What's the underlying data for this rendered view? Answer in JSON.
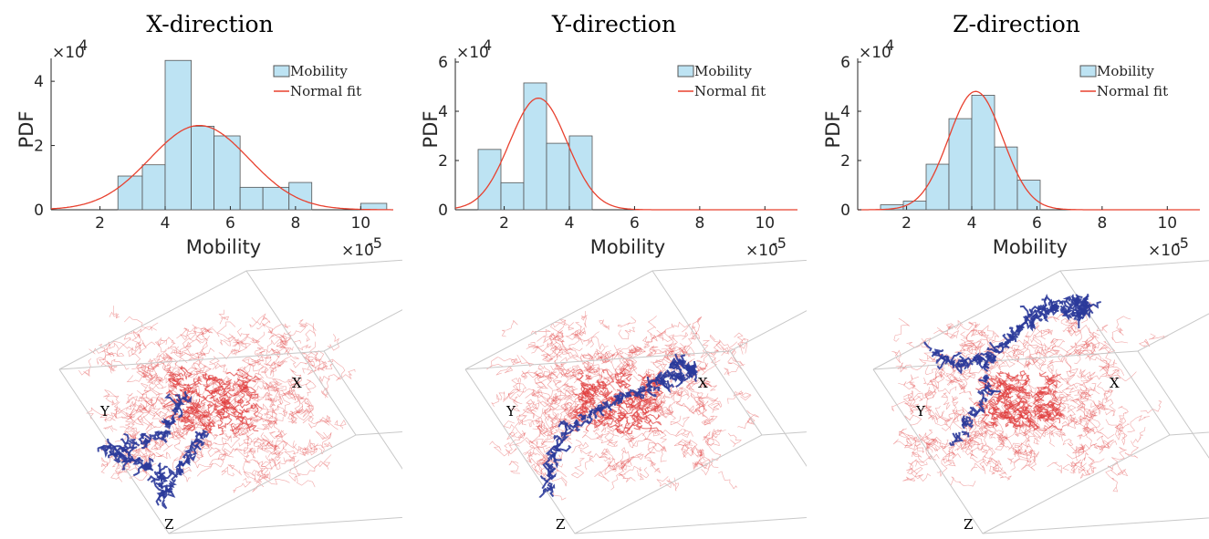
{
  "chart_data": [
    {
      "type": "bar",
      "title": "X-direction",
      "xlabel": "Mobility",
      "ylabel": "PDF",
      "x_multiplier": "×10",
      "x_exponent": "-5",
      "y_multiplier": "×10",
      "y_exponent": "4",
      "xlim": [
        0.5,
        11
      ],
      "ylim": [
        0,
        4.6
      ],
      "xticks": [
        "2",
        "4",
        "6",
        "8",
        "10"
      ],
      "yticks": [
        "0",
        "2",
        "4"
      ],
      "bin_edges": [
        2.55,
        3.3,
        4.0,
        4.8,
        5.5,
        6.3,
        7.0,
        7.8,
        8.5,
        9.3,
        10.0,
        10.8
      ],
      "bin_values": [
        1.05,
        1.4,
        4.65,
        2.6,
        2.3,
        0.7,
        0.7,
        0.85,
        0,
        0,
        0.2
      ],
      "fit": {
        "mean": 5.05,
        "sd": 1.52
      },
      "legend": [
        "Mobility",
        "Normal fit"
      ]
    },
    {
      "type": "bar",
      "title": "Y-direction",
      "xlabel": "Mobility",
      "ylabel": "PDF",
      "x_multiplier": "×10",
      "x_exponent": "-5",
      "y_multiplier": "×10",
      "y_exponent": "4",
      "xlim": [
        0.5,
        11
      ],
      "ylim": [
        0,
        6
      ],
      "xticks": [
        "2",
        "4",
        "6",
        "8",
        "10"
      ],
      "yticks": [
        "0",
        "2",
        "4",
        "6"
      ],
      "bin_edges": [
        1.2,
        1.9,
        2.6,
        3.3,
        4.0,
        4.7
      ],
      "bin_values": [
        2.45,
        1.1,
        5.15,
        2.7,
        3.0
      ],
      "fit": {
        "mean": 3.05,
        "sd": 0.88
      },
      "legend": [
        "Mobility",
        "Normal fit"
      ]
    },
    {
      "type": "bar",
      "title": "Z-direction",
      "xlabel": "Mobility",
      "ylabel": "PDF",
      "x_multiplier": "×10",
      "x_exponent": "-5",
      "y_multiplier": "×10",
      "y_exponent": "4",
      "xlim": [
        0.5,
        11
      ],
      "ylim": [
        0,
        6
      ],
      "xticks": [
        "2",
        "4",
        "6",
        "8",
        "10"
      ],
      "yticks": [
        "0",
        "2",
        "4",
        "6"
      ],
      "bin_edges": [
        1.2,
        1.9,
        2.6,
        3.3,
        4.0,
        4.7,
        5.4,
        6.1
      ],
      "bin_values": [
        0.2,
        0.35,
        1.85,
        3.7,
        4.65,
        2.55,
        1.2
      ],
      "fit": {
        "mean": 4.12,
        "sd": 0.83
      },
      "legend": [
        "Mobility",
        "Normal fit"
      ]
    }
  ],
  "cube_labels": [
    {
      "x": "X",
      "y": "Y",
      "z": "Z"
    },
    {
      "x": "X",
      "y": "Y",
      "z": "Z"
    },
    {
      "x": "X",
      "y": "Y",
      "z": "Z"
    }
  ],
  "colors": {
    "bar_fill": "#bde3f3",
    "bar_edge": "#555555",
    "fit_line": "#e8412f",
    "cloud": "#e03c3c",
    "path": "#2b3a9a",
    "box": "#c8c8c8"
  }
}
